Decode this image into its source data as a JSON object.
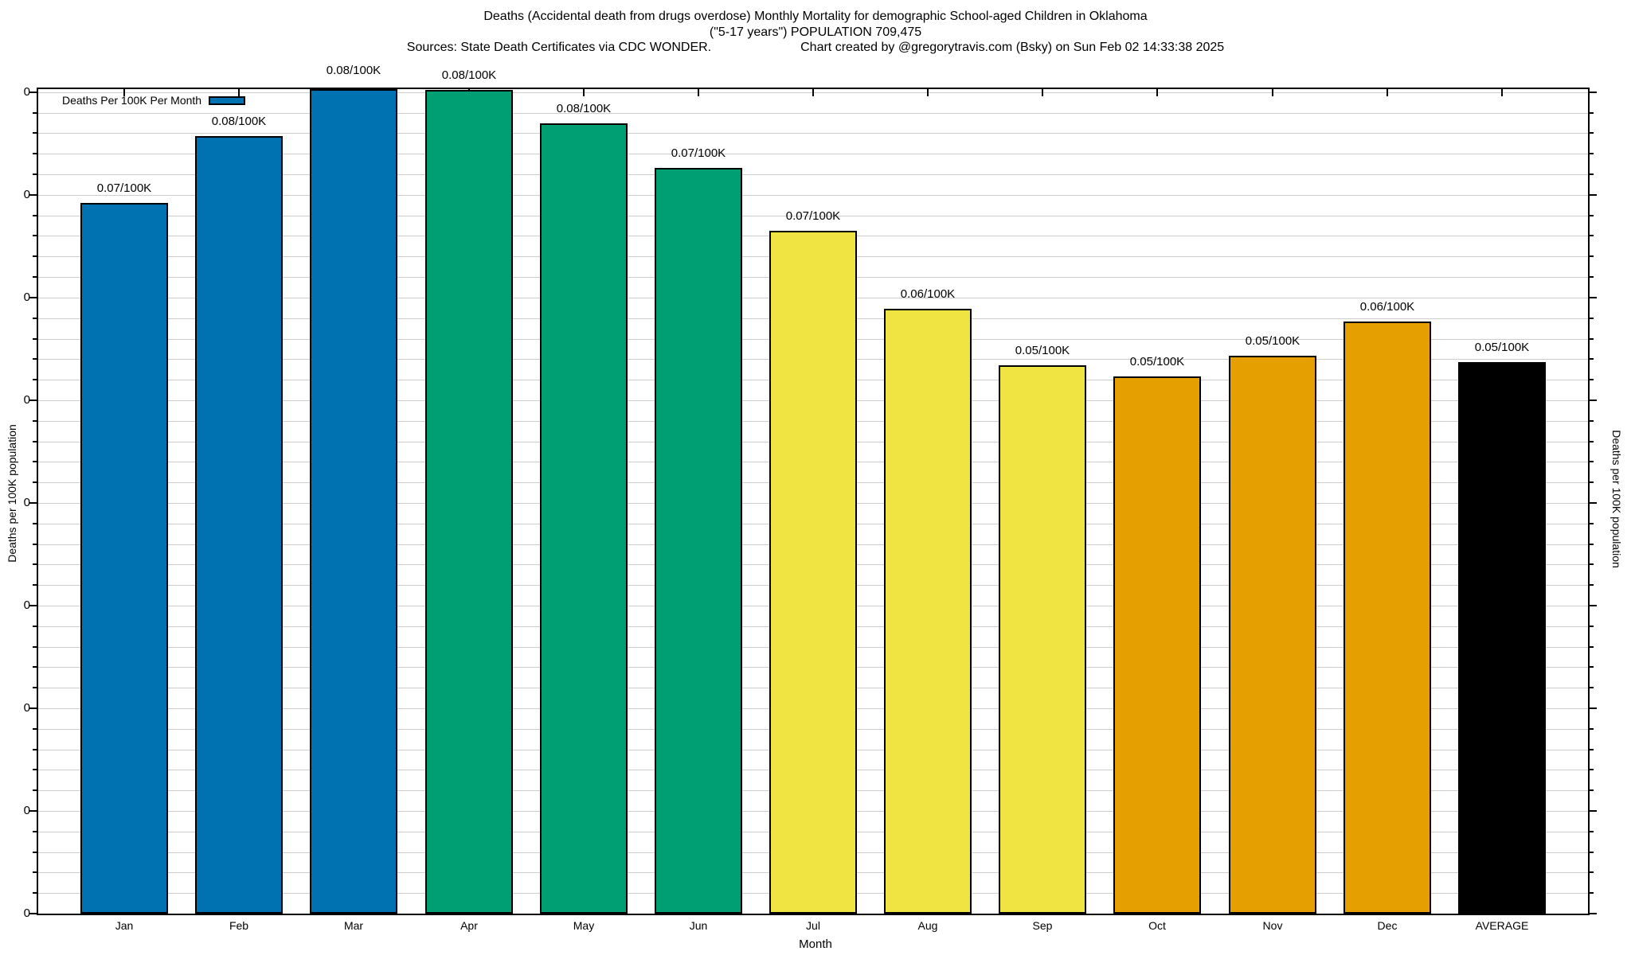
{
  "title": {
    "line1": "Deaths (Accidental death from drugs overdose) Monthly Mortality for demographic School-aged Children in Oklahoma",
    "line2": "(\"5-17 years\") POPULATION 709,475",
    "line3_sources": "Sources: State Death Certificates via CDC WONDER.",
    "line3_credit": "Chart created by @gregorytravis.com (Bsky) on Sun Feb 02 14:33:38 2025"
  },
  "legend": {
    "label": "Deaths Per 100K Per Month",
    "swatch_color": "#0072B2"
  },
  "chart_data": {
    "type": "bar",
    "title": "Deaths (Accidental death from drugs overdose) Monthly Mortality for demographic School-aged Children in Oklahoma (\"5-17 years\") POPULATION 709,475",
    "categories": [
      "Jan",
      "Feb",
      "Mar",
      "Apr",
      "May",
      "Jun",
      "Jul",
      "Aug",
      "Sep",
      "Oct",
      "Nov",
      "Dec",
      "AVERAGE"
    ],
    "values": [
      0.0692,
      0.0757,
      0.0807,
      0.0802,
      0.077,
      0.0726,
      0.0665,
      0.0589,
      0.0534,
      0.0523,
      0.0543,
      0.0577,
      0.0537
    ],
    "bar_labels": [
      "0.07/100K",
      "0.08/100K",
      "0.08/100K",
      "0.08/100K",
      "0.08/100K",
      "0.07/100K",
      "0.07/100K",
      "0.06/100K",
      "0.05/100K",
      "0.05/100K",
      "0.05/100K",
      "0.06/100K",
      "0.05/100K"
    ],
    "bar_colors": [
      "#0072B2",
      "#0072B2",
      "#0072B2",
      "#009E73",
      "#009E73",
      "#009E73",
      "#F0E442",
      "#F0E442",
      "#F0E442",
      "#E69F00",
      "#E69F00",
      "#E69F00",
      "#000000"
    ],
    "xlabel": "Month",
    "ylabel_left": "Deaths per 100K population",
    "ylabel_right": "Deaths per 100K population",
    "ytick_label_text": "0",
    "ylim": [
      0,
      0.0803
    ],
    "ytick_major_step": 0.01,
    "ytick_minor_step": 0.002,
    "grid": true,
    "legend_position": "top-left"
  },
  "colors": {
    "bar_border": "#000000",
    "grid": "#cdcdcd",
    "frame": "#000000",
    "background": "#ffffff"
  }
}
